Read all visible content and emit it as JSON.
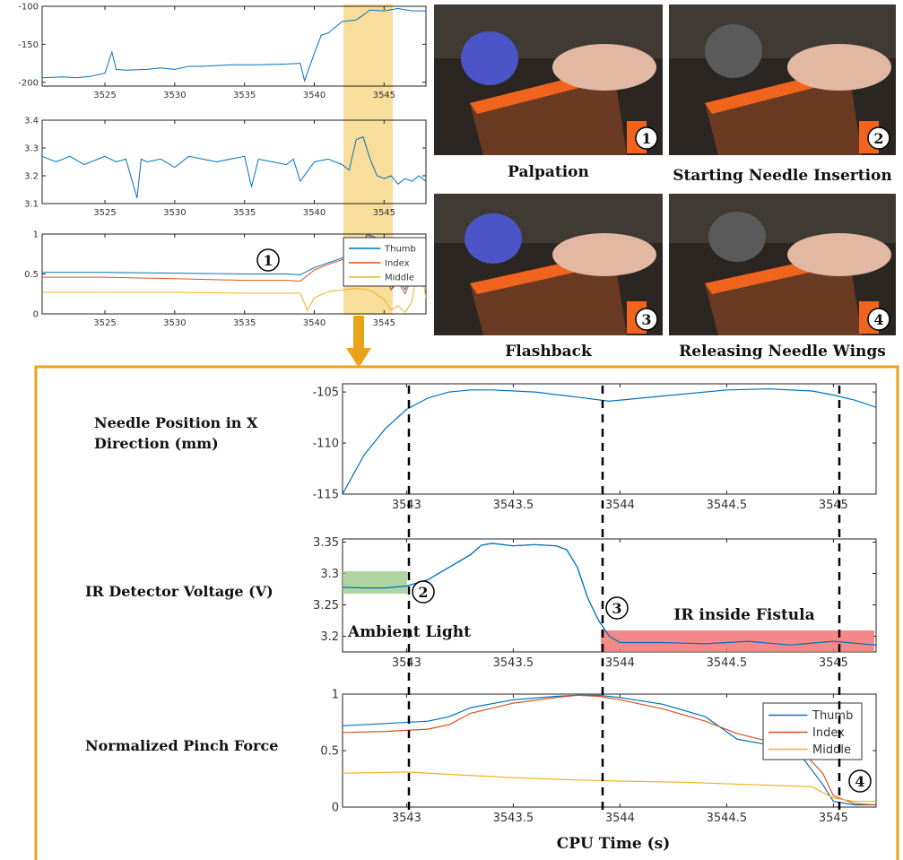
{
  "overview": {
    "panel_1": {
      "x_ticks": [
        "3525",
        "3530",
        "3535",
        "3540",
        "3545"
      ],
      "y_ticks": [
        "-100",
        "-150",
        "-200"
      ]
    },
    "panel_2": {
      "x_ticks": [
        "3525",
        "3530",
        "3535",
        "3540",
        "3545"
      ],
      "y_ticks": [
        "3.4",
        "3.3",
        "3.2",
        "3.1"
      ]
    },
    "panel_3": {
      "x_ticks": [
        "3525",
        "3530",
        "3535",
        "3540",
        "3545"
      ],
      "y_ticks": [
        "1",
        "0.5",
        "0"
      ],
      "legend": [
        "Thumb",
        "Index",
        "Middle"
      ],
      "marker": "1"
    }
  },
  "photos": [
    {
      "caption": "Palpation",
      "number": "1"
    },
    {
      "caption": "Starting Needle Insertion",
      "number": "2"
    },
    {
      "caption": "Flashback",
      "number": "3"
    },
    {
      "caption": "Releasing Needle Wings",
      "number": "4"
    }
  ],
  "detail": {
    "row_labels": [
      "Needle Position in X\nDirection (mm)",
      "IR Detector Voltage (V)",
      "Normalized Pinch Force"
    ],
    "xlabel": "CPU Time (s)",
    "annotations": {
      "ambient": "Ambient Light",
      "fistula": "IR inside Fistula",
      "markers": [
        "2",
        "3",
        "4"
      ]
    }
  },
  "colors": {
    "thumb": "#0072BD",
    "index": "#D95319",
    "middle": "#EDB120",
    "highlight": "#F7D27A",
    "frame": "#E8A317",
    "ambient_box": "#9DCB8A",
    "fistula_box": "#F26B6B"
  },
  "chart_data": [
    {
      "type": "line",
      "xlim": [
        3520.5,
        3548
      ],
      "ylim": [
        -205,
        -100
      ],
      "series": [
        {
          "x": [
            3520.5,
            3522,
            3523,
            3524,
            3525,
            3525.5,
            3525.8,
            3526.5,
            3528,
            3529,
            3530,
            3531,
            3532,
            3534,
            3536,
            3538,
            3539,
            3539.3,
            3540,
            3540.5,
            3541,
            3542,
            3543,
            3544,
            3545,
            3546,
            3547,
            3548
          ],
          "values": [
            -194,
            -193,
            -194,
            -192,
            -188,
            -160,
            -183,
            -184,
            -183,
            -181,
            -183,
            -179,
            -179,
            -177,
            -177,
            -176,
            -175,
            -198,
            -162,
            -138,
            -135,
            -120,
            -118,
            -105,
            -106,
            -103,
            -106,
            -106
          ]
        }
      ]
    },
    {
      "type": "line",
      "xlim": [
        3520.5,
        3548
      ],
      "ylim": [
        3.1,
        3.4
      ],
      "series": [
        {
          "x": [
            3520.5,
            3521.5,
            3522.5,
            3523.5,
            3524.5,
            3525,
            3525.8,
            3526.5,
            3527.3,
            3527.6,
            3528,
            3529,
            3530,
            3531,
            3532,
            3533,
            3534,
            3535,
            3535.5,
            3536,
            3537,
            3538,
            3538.5,
            3539,
            3540,
            3541,
            3542,
            3542.5,
            3543,
            3543.5,
            3544,
            3544.5,
            3545,
            3545.5,
            3546,
            3546.5,
            3547,
            3547.5,
            3548
          ],
          "values": [
            3.27,
            3.25,
            3.27,
            3.24,
            3.26,
            3.27,
            3.25,
            3.26,
            3.12,
            3.26,
            3.25,
            3.26,
            3.23,
            3.27,
            3.26,
            3.25,
            3.26,
            3.27,
            3.16,
            3.26,
            3.25,
            3.24,
            3.26,
            3.18,
            3.25,
            3.26,
            3.24,
            3.22,
            3.33,
            3.34,
            3.26,
            3.2,
            3.19,
            3.2,
            3.17,
            3.19,
            3.18,
            3.2,
            3.18
          ]
        }
      ]
    },
    {
      "type": "line",
      "xlim": [
        3520.5,
        3548
      ],
      "ylim": [
        0,
        1
      ],
      "legend": "top-right",
      "series": [
        {
          "name": "Thumb",
          "x": [
            3520.5,
            3525,
            3530,
            3535,
            3538,
            3539,
            3540,
            3541,
            3542,
            3543,
            3543.8,
            3544.5,
            3545,
            3545.5,
            3546,
            3546.5,
            3547,
            3547.5,
            3548
          ],
          "values": [
            0.52,
            0.52,
            0.51,
            0.5,
            0.5,
            0.49,
            0.58,
            0.64,
            0.7,
            0.76,
            1.0,
            0.95,
            0.6,
            0.3,
            0.45,
            0.3,
            0.5,
            0.6,
            0.5
          ]
        },
        {
          "name": "Index",
          "x": [
            3520.5,
            3525,
            3530,
            3535,
            3538,
            3539,
            3540,
            3541,
            3542,
            3543,
            3543.8,
            3544.5,
            3545,
            3545.5,
            3546,
            3546.5,
            3547,
            3547.5,
            3548
          ],
          "values": [
            0.46,
            0.46,
            0.44,
            0.42,
            0.42,
            0.41,
            0.55,
            0.62,
            0.68,
            0.68,
            0.99,
            0.92,
            0.55,
            0.3,
            0.4,
            0.25,
            0.45,
            0.55,
            0.5
          ]
        },
        {
          "name": "Middle",
          "x": [
            3520.5,
            3525,
            3530,
            3535,
            3538,
            3539,
            3539.5,
            3540,
            3541,
            3542,
            3543,
            3544,
            3545,
            3545.5,
            3546,
            3546.5,
            3547,
            3547.5,
            3548
          ],
          "values": [
            0.27,
            0.27,
            0.27,
            0.26,
            0.26,
            0.26,
            0.05,
            0.2,
            0.28,
            0.3,
            0.32,
            0.3,
            0.18,
            0.05,
            0.1,
            0.02,
            0.15,
            0.7,
            0.2
          ]
        }
      ]
    },
    {
      "type": "line",
      "xlim": [
        3542.7,
        3545.2
      ],
      "ylim": [
        -115,
        -104.2
      ],
      "x_ticks": [
        "3543",
        "3543.5",
        "3544",
        "3544.5",
        "3545"
      ],
      "y_ticks": [
        "-105",
        "-110",
        "-115"
      ],
      "series": [
        {
          "x": [
            3542.7,
            3542.8,
            3542.9,
            3543.0,
            3543.1,
            3543.2,
            3543.3,
            3543.4,
            3543.6,
            3543.8,
            3543.95,
            3544.1,
            3544.3,
            3544.5,
            3544.7,
            3544.9,
            3545.0,
            3545.1,
            3545.2
          ],
          "values": [
            -115,
            -111.2,
            -108.6,
            -106.7,
            -105.6,
            -105.0,
            -104.8,
            -104.8,
            -105.0,
            -105.5,
            -105.9,
            -105.6,
            -105.2,
            -104.8,
            -104.7,
            -104.9,
            -105.3,
            -105.8,
            -106.5
          ]
        }
      ]
    },
    {
      "type": "line",
      "xlim": [
        3542.7,
        3545.2
      ],
      "ylim": [
        3.175,
        3.355
      ],
      "x_ticks": [
        "3543",
        "3543.5",
        "3544",
        "3544.5",
        "3545"
      ],
      "y_ticks": [
        "3.35",
        "3.3",
        "3.25",
        "3.2"
      ],
      "series": [
        {
          "x": [
            3542.7,
            3542.8,
            3542.9,
            3543.0,
            3543.1,
            3543.2,
            3543.3,
            3543.35,
            3543.4,
            3543.5,
            3543.6,
            3543.7,
            3543.75,
            3543.8,
            3543.85,
            3543.9,
            3543.95,
            3544.0,
            3544.2,
            3544.4,
            3544.6,
            3544.8,
            3545.0,
            3545.2
          ],
          "values": [
            3.278,
            3.277,
            3.277,
            3.28,
            3.29,
            3.31,
            3.33,
            3.345,
            3.348,
            3.344,
            3.346,
            3.344,
            3.338,
            3.31,
            3.26,
            3.225,
            3.2,
            3.19,
            3.19,
            3.188,
            3.192,
            3.186,
            3.192,
            3.186
          ]
        }
      ]
    },
    {
      "type": "line",
      "xlim": [
        3542.7,
        3545.2
      ],
      "ylim": [
        0,
        1
      ],
      "x_ticks": [
        "3543",
        "3543.5",
        "3544",
        "3544.5",
        "3545"
      ],
      "y_ticks": [
        "1",
        "0.5",
        "0"
      ],
      "legend": "top-right",
      "series": [
        {
          "name": "Thumb",
          "x": [
            3542.7,
            3542.9,
            3543.1,
            3543.2,
            3543.3,
            3543.5,
            3543.7,
            3543.8,
            3543.9,
            3544.0,
            3544.2,
            3544.4,
            3544.55,
            3544.7,
            3544.85,
            3544.95,
            3545.0,
            3545.1,
            3545.2
          ],
          "values": [
            0.72,
            0.74,
            0.76,
            0.8,
            0.88,
            0.95,
            0.98,
            0.99,
            0.99,
            0.97,
            0.91,
            0.8,
            0.6,
            0.55,
            0.45,
            0.2,
            0.05,
            0.02,
            0.02
          ]
        },
        {
          "name": "Index",
          "x": [
            3542.7,
            3542.9,
            3543.1,
            3543.2,
            3543.3,
            3543.5,
            3543.7,
            3543.8,
            3543.9,
            3544.0,
            3544.2,
            3544.4,
            3544.55,
            3544.7,
            3544.85,
            3544.95,
            3545.0,
            3545.1,
            3545.2
          ],
          "values": [
            0.66,
            0.67,
            0.69,
            0.73,
            0.83,
            0.92,
            0.97,
            0.99,
            0.98,
            0.95,
            0.87,
            0.76,
            0.65,
            0.58,
            0.5,
            0.3,
            0.1,
            0.03,
            0.02
          ]
        },
        {
          "name": "Middle",
          "x": [
            3542.7,
            3543.0,
            3543.2,
            3543.5,
            3543.8,
            3544.0,
            3544.3,
            3544.6,
            3544.9,
            3545.0,
            3545.1,
            3545.2
          ],
          "values": [
            0.3,
            0.31,
            0.29,
            0.26,
            0.24,
            0.23,
            0.22,
            0.2,
            0.18,
            0.08,
            0.05,
            0.05
          ]
        }
      ]
    }
  ]
}
